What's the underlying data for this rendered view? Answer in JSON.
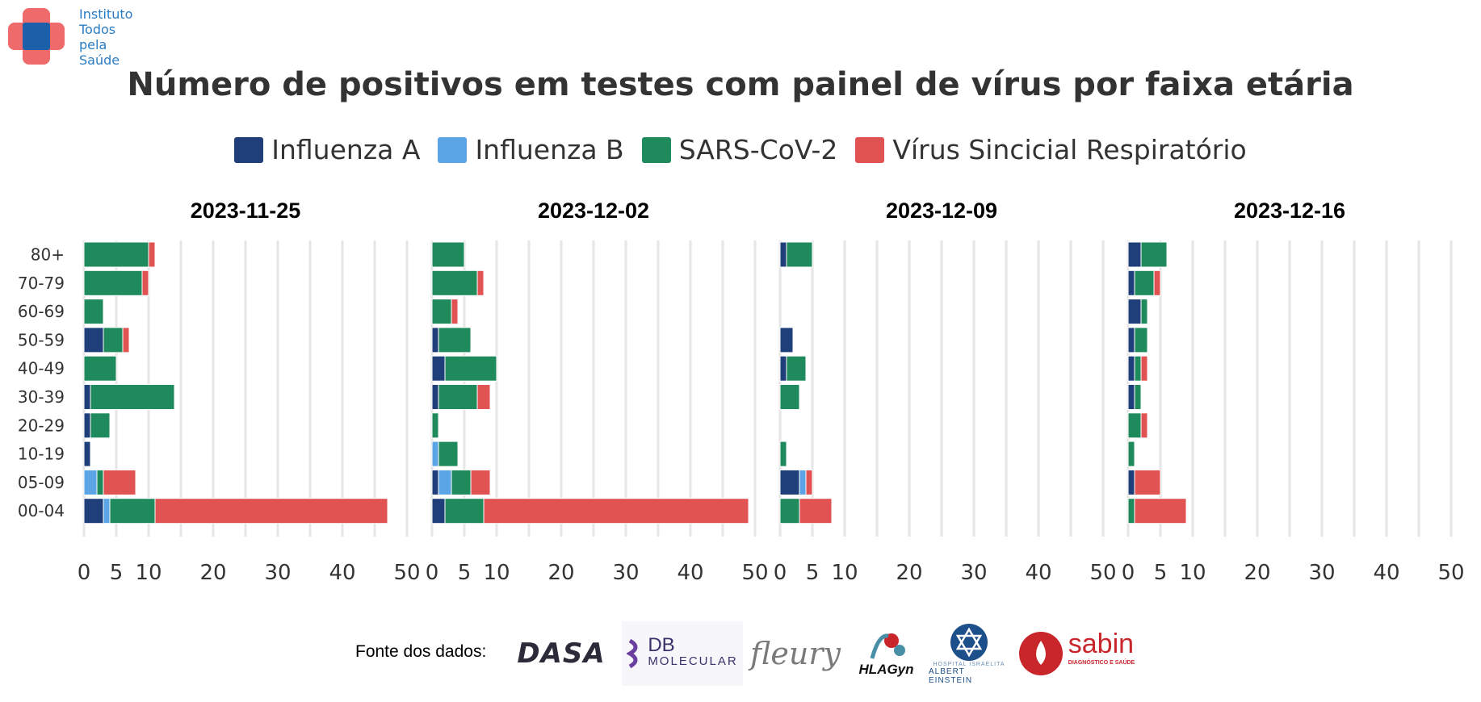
{
  "logo": {
    "line1": "Instituto",
    "line2": "Todos",
    "line3": "pela",
    "line4": "Saúde"
  },
  "colors": {
    "Influenza A": "#1f3f7a",
    "Influenza B": "#5ba5e6",
    "SARS-CoV-2": "#1f8a5c",
    "Vírus Sincicial Respiratório": "#e15252",
    "grid": "#e6e6e6",
    "text": "#333333"
  },
  "legend": [
    "Influenza A",
    "Influenza B",
    "SARS-CoV-2",
    "Vírus Sincicial Respiratório"
  ],
  "chart_data": {
    "type": "bar",
    "orientation": "horizontal",
    "stacked": true,
    "title": "Número de positivos em testes com painel de vírus por faixa etária",
    "categories": [
      "80+",
      "70-79",
      "60-69",
      "50-59",
      "40-49",
      "30-39",
      "20-29",
      "10-19",
      "05-09",
      "00-04"
    ],
    "xlim": [
      0,
      50
    ],
    "xticks": [
      0,
      5,
      10,
      20,
      30,
      40,
      50
    ],
    "grid": true,
    "legend_position": "top",
    "panels": [
      {
        "title": "2023-11-25",
        "series": [
          {
            "name": "Influenza A",
            "values": [
              0,
              0,
              0,
              3,
              0,
              1,
              1,
              1,
              0,
              3
            ]
          },
          {
            "name": "Influenza B",
            "values": [
              0,
              0,
              0,
              0,
              0,
              0,
              0,
              0,
              2,
              1
            ]
          },
          {
            "name": "SARS-CoV-2",
            "values": [
              10,
              9,
              3,
              3,
              5,
              13,
              3,
              0,
              1,
              7
            ]
          },
          {
            "name": "Vírus Sincicial Respiratório",
            "values": [
              1,
              1,
              0,
              1,
              0,
              0,
              0,
              0,
              5,
              36
            ]
          }
        ]
      },
      {
        "title": "2023-12-02",
        "series": [
          {
            "name": "Influenza A",
            "values": [
              0,
              0,
              0,
              1,
              2,
              1,
              0,
              0,
              1,
              2
            ]
          },
          {
            "name": "Influenza B",
            "values": [
              0,
              0,
              0,
              0,
              0,
              0,
              0,
              1,
              2,
              0
            ]
          },
          {
            "name": "SARS-CoV-2",
            "values": [
              5,
              7,
              3,
              5,
              8,
              6,
              1,
              3,
              3,
              6
            ]
          },
          {
            "name": "Vírus Sincicial Respiratório",
            "values": [
              0,
              1,
              1,
              0,
              0,
              2,
              0,
              0,
              3,
              41
            ]
          }
        ]
      },
      {
        "title": "2023-12-09",
        "series": [
          {
            "name": "Influenza A",
            "values": [
              1,
              0,
              0,
              2,
              1,
              0,
              0,
              0,
              3,
              0
            ]
          },
          {
            "name": "Influenza B",
            "values": [
              0,
              0,
              0,
              0,
              0,
              0,
              0,
              0,
              1,
              0
            ]
          },
          {
            "name": "SARS-CoV-2",
            "values": [
              4,
              0,
              0,
              0,
              3,
              3,
              0,
              1,
              0,
              3
            ]
          },
          {
            "name": "Vírus Sincicial Respiratório",
            "values": [
              0,
              0,
              0,
              0,
              0,
              0,
              0,
              0,
              1,
              5
            ]
          }
        ]
      },
      {
        "title": "2023-12-16",
        "series": [
          {
            "name": "Influenza A",
            "values": [
              2,
              1,
              2,
              1,
              1,
              1,
              0,
              0,
              1,
              0
            ]
          },
          {
            "name": "Influenza B",
            "values": [
              0,
              0,
              0,
              0,
              0,
              0,
              0,
              0,
              0,
              0
            ]
          },
          {
            "name": "SARS-CoV-2",
            "values": [
              4,
              3,
              1,
              2,
              1,
              1,
              2,
              1,
              0,
              1
            ]
          },
          {
            "name": "Vírus Sincicial Respiratório",
            "values": [
              0,
              1,
              0,
              0,
              1,
              0,
              1,
              0,
              4,
              8
            ]
          }
        ]
      }
    ]
  },
  "footer": {
    "label": "Fonte dos dados:",
    "logos": [
      {
        "icon": "dasa-logo",
        "text": "DASA"
      },
      {
        "icon": "db-molecular-logo",
        "text": "DB",
        "text2": "MOLECULAR"
      },
      {
        "icon": "fleury-logo",
        "text": "fleury"
      },
      {
        "icon": "hlagyn-logo",
        "text": "HLAGyn"
      },
      {
        "icon": "einstein-logo",
        "text": "HOSPITAL ISRAELITA",
        "text2": "ALBERT EINSTEIN"
      },
      {
        "icon": "sabin-logo",
        "text": "sabin",
        "text2": "DIAGNÓSTICO E SAÚDE"
      }
    ]
  }
}
